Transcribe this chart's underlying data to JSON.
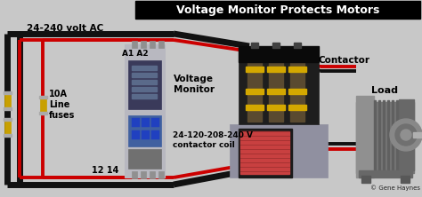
{
  "title": "Voltage Monitor Protects Motors",
  "title_bg": "#000000",
  "title_color": "#ffffff",
  "bg_color": "#c8c8c8",
  "label_24_240": "24-240 volt AC",
  "label_a1a2": "A1 A2",
  "label_fuses": "10A\nLine\nfuses",
  "label_1214": "12 14",
  "label_vm": "Voltage\nMonitor",
  "label_coil": "24-120-208-240 V\ncontactor coil",
  "label_contactor": "Contactor",
  "label_load": "Load",
  "label_credit": "© Gene Haynes",
  "wire_red": "#cc0000",
  "wire_black": "#111111",
  "wire_red2": "#dd1111",
  "gray_bg": "#b0b0b0"
}
